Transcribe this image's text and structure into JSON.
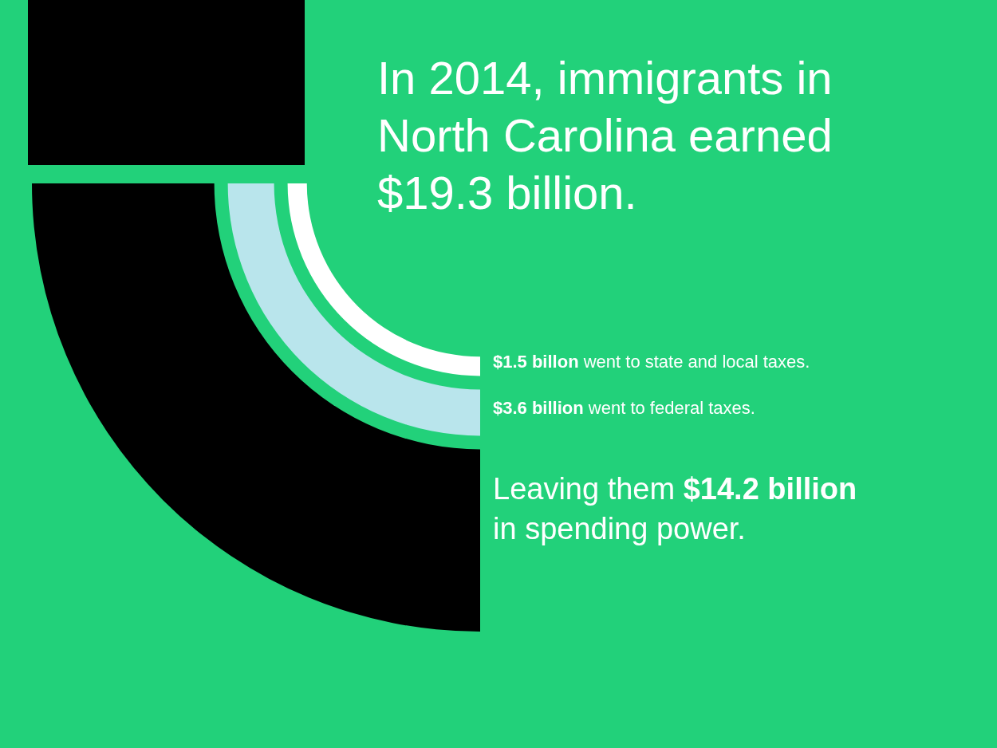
{
  "chart_data": {
    "type": "other",
    "title": "In 2014, immigrants in North Carolina earned $19.3 billion.",
    "categories": [
      "went to state and local taxes.",
      "went to federal taxes.",
      "in spending power."
    ],
    "values": [
      1.5,
      3.6,
      14.2
    ],
    "value_labels": [
      "$1.5 billon",
      "$3.6 billion",
      "$14.2 billion"
    ],
    "annotations": [
      "Leaving them"
    ],
    "colors": [
      "#ffffff",
      "#b9e5ec",
      "#000000"
    ]
  }
}
